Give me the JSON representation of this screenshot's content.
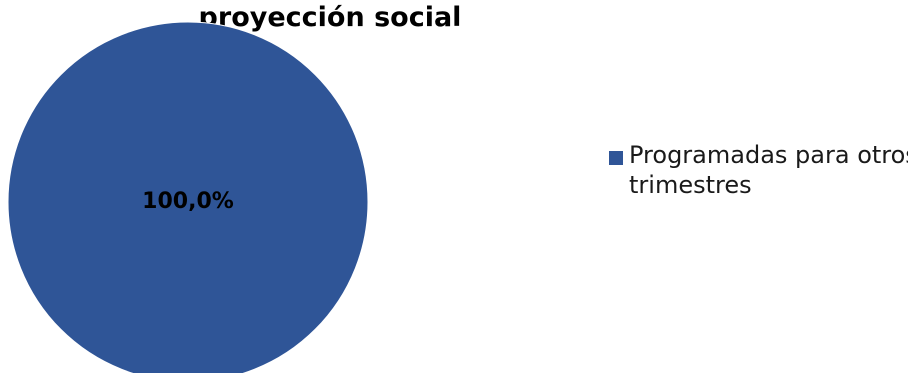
{
  "chart_data": {
    "type": "pie",
    "title": "proyección social",
    "categories": [
      "Programadas para otros trimestres"
    ],
    "values": [
      100.0
    ],
    "data_labels": [
      "100,0%"
    ],
    "colors": [
      "#2f5597"
    ],
    "legend_position": "right"
  }
}
